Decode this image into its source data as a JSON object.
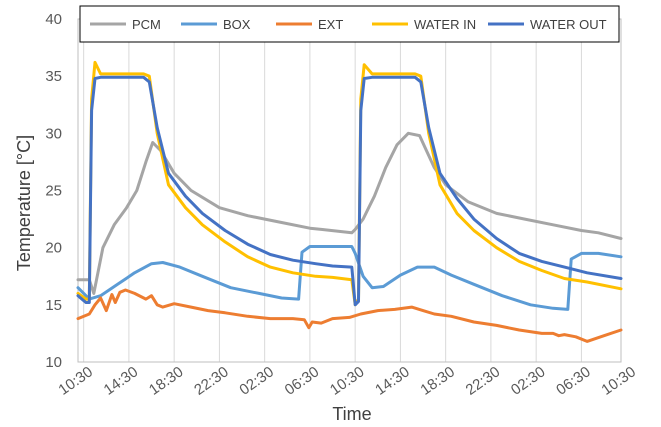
{
  "chart_data": {
    "type": "line",
    "title": "",
    "xlabel": "Time",
    "ylabel": "Temperature [°C]",
    "ylim": [
      10,
      40
    ],
    "yticks": [
      10,
      15,
      20,
      25,
      30,
      35,
      40
    ],
    "xlim": [
      10,
      58
    ],
    "x_unit": "hours from 00:00 of first day",
    "xtick_labels": [
      "10:30",
      "14:30",
      "18:30",
      "22:30",
      "02:30",
      "06:30",
      "10:30",
      "14:30",
      "18:30",
      "22:30",
      "02:30",
      "06:30",
      "10:30"
    ],
    "xtick_values": [
      10.5,
      14.5,
      18.5,
      22.5,
      26.5,
      30.5,
      34.5,
      38.5,
      42.5,
      46.5,
      50.5,
      54.5,
      58.5
    ],
    "grid": "vertical",
    "legend": "top",
    "series": [
      {
        "name": "PCM",
        "color": "#A5A5A5",
        "x": [
          10.0,
          11.0,
          11.4,
          12.2,
          13.2,
          14.3,
          15.2,
          16.0,
          16.6,
          17.3,
          18.5,
          20.0,
          22.5,
          25.0,
          28.0,
          30.5,
          31.5,
          34.2,
          34.5,
          35.2,
          35.7,
          36.2,
          37.2,
          38.2,
          39.2,
          40.2,
          40.8,
          41.5,
          42.5,
          44.5,
          47.0,
          49.5,
          52.0,
          54.5,
          56.0,
          58.0
        ],
        "y": [
          17.2,
          17.2,
          16.0,
          20.0,
          22.0,
          23.5,
          25.0,
          27.5,
          29.2,
          28.5,
          26.5,
          25.0,
          23.5,
          22.8,
          22.2,
          21.7,
          21.6,
          21.3,
          21.6,
          22.5,
          23.5,
          24.5,
          27.0,
          29.0,
          30.0,
          29.8,
          28.5,
          27.0,
          25.5,
          24.0,
          23.0,
          22.5,
          22.0,
          21.5,
          21.3,
          20.8
        ]
      },
      {
        "name": "BOX",
        "color": "#5B9BD5",
        "x": [
          10.0,
          11.0,
          12.0,
          13.5,
          15.0,
          16.5,
          17.5,
          19.0,
          21.0,
          23.5,
          26.0,
          28.0,
          29.5,
          29.8,
          30.5,
          32.0,
          34.2,
          34.5,
          35.2,
          36.0,
          37.0,
          38.5,
          40.0,
          41.5,
          43.0,
          45.0,
          47.5,
          50.0,
          52.0,
          53.3,
          53.6,
          54.5,
          56.0,
          58.0
        ],
        "y": [
          16.5,
          15.5,
          15.8,
          16.8,
          17.8,
          18.6,
          18.7,
          18.3,
          17.5,
          16.5,
          16.0,
          15.6,
          15.5,
          19.6,
          20.1,
          20.1,
          20.1,
          19.5,
          17.5,
          16.5,
          16.6,
          17.6,
          18.3,
          18.3,
          17.6,
          16.8,
          15.8,
          15.0,
          14.7,
          14.6,
          19.0,
          19.5,
          19.5,
          19.2
        ]
      },
      {
        "name": "EXT",
        "color": "#ED7D31",
        "x": [
          10.0,
          11.0,
          11.5,
          12.0,
          12.5,
          13.0,
          13.3,
          13.7,
          14.2,
          15.0,
          16.0,
          16.5,
          17.0,
          17.5,
          18.5,
          20.0,
          21.5,
          23.0,
          25.0,
          27.0,
          29.0,
          30.0,
          30.4,
          30.7,
          31.5,
          32.5,
          34.0,
          35.0,
          36.5,
          38.0,
          39.5,
          40.5,
          41.5,
          43.0,
          45.0,
          47.0,
          49.0,
          51.0,
          52.0,
          52.5,
          53.0,
          54.0,
          55.0,
          56.5,
          58.0
        ],
        "y": [
          13.8,
          14.2,
          15.0,
          15.6,
          14.5,
          15.9,
          15.2,
          16.1,
          16.3,
          16.0,
          15.5,
          15.8,
          15.0,
          14.8,
          15.1,
          14.8,
          14.5,
          14.3,
          14.0,
          13.8,
          13.8,
          13.7,
          13.0,
          13.5,
          13.4,
          13.8,
          13.9,
          14.2,
          14.5,
          14.6,
          14.8,
          14.5,
          14.2,
          14.0,
          13.5,
          13.2,
          12.8,
          12.5,
          12.5,
          12.3,
          12.4,
          12.2,
          11.8,
          12.3,
          12.8
        ]
      },
      {
        "name": "WATER IN",
        "color": "#FFC000",
        "x": [
          10.0,
          10.7,
          11.0,
          11.2,
          11.5,
          12.0,
          13.0,
          14.0,
          15.0,
          15.8,
          16.3,
          17.0,
          18.0,
          19.5,
          21.0,
          23.0,
          25.0,
          27.0,
          29.0,
          31.0,
          32.5,
          34.2,
          34.5,
          34.8,
          35.0,
          35.3,
          36.0,
          37.0,
          38.0,
          39.0,
          39.8,
          40.3,
          41.0,
          42.0,
          43.5,
          45.0,
          47.0,
          49.0,
          51.0,
          53.0,
          55.0,
          58.0
        ],
        "y": [
          16.0,
          15.5,
          15.5,
          33.0,
          36.2,
          35.2,
          35.2,
          35.2,
          35.2,
          35.2,
          35.0,
          30.0,
          25.5,
          23.5,
          22.0,
          20.5,
          19.2,
          18.3,
          17.8,
          17.5,
          17.4,
          17.2,
          15.0,
          15.5,
          33.0,
          36.0,
          35.2,
          35.2,
          35.2,
          35.2,
          35.2,
          35.0,
          30.0,
          25.5,
          23.0,
          21.5,
          20.0,
          18.8,
          18.0,
          17.3,
          17.0,
          16.4
        ]
      },
      {
        "name": "WATER OUT",
        "color": "#4472C4",
        "x": [
          10.0,
          10.7,
          11.0,
          11.2,
          11.5,
          12.0,
          13.0,
          14.0,
          15.0,
          15.8,
          16.3,
          17.0,
          18.0,
          19.5,
          21.0,
          23.0,
          25.0,
          27.0,
          29.0,
          31.0,
          32.5,
          34.2,
          34.5,
          34.8,
          35.0,
          35.3,
          36.0,
          37.0,
          38.0,
          39.0,
          39.8,
          40.3,
          41.0,
          42.0,
          43.5,
          45.0,
          47.0,
          49.0,
          51.0,
          53.0,
          55.0,
          58.0
        ],
        "y": [
          15.8,
          15.2,
          15.2,
          32.0,
          34.8,
          34.9,
          34.9,
          34.9,
          34.9,
          34.9,
          34.5,
          30.5,
          26.5,
          24.5,
          23.0,
          21.5,
          20.3,
          19.4,
          18.9,
          18.6,
          18.4,
          18.3,
          15.0,
          15.3,
          32.0,
          34.8,
          34.9,
          34.9,
          34.9,
          34.9,
          34.9,
          34.5,
          30.5,
          26.5,
          24.3,
          22.5,
          20.8,
          19.5,
          18.8,
          18.3,
          17.8,
          17.3
        ]
      }
    ]
  }
}
